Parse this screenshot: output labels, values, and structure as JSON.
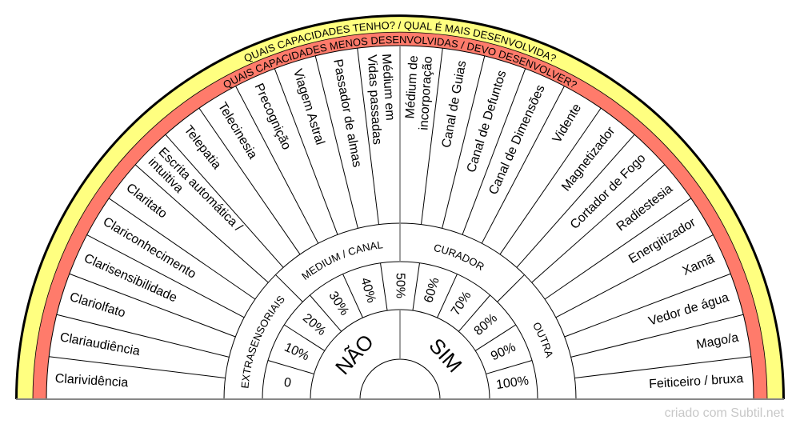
{
  "colors": {
    "outer_ring": "#ffff80",
    "inner_ring": "#ff7b6b",
    "edge": "#000000",
    "line": "#000000",
    "axis": "#888888"
  },
  "rings": {
    "outer_text": "QUAIS CAPACIDADES TENHO? / QUAL É MAIS DESENVOLVIDA?",
    "inner_text": "QUAIS CAPACIDADES MENOS DESENVOLVIDAS / DEVO DESENVOLVER?"
  },
  "capacities": [
    [
      "Clarividência"
    ],
    [
      "Clariaudiência"
    ],
    [
      "Clariolfato"
    ],
    [
      "Clarisensibilidade"
    ],
    [
      "Clariconhecimento"
    ],
    [
      "Claritato"
    ],
    [
      "Escrita automática /",
      "intuitiva"
    ],
    [
      "Telepatia"
    ],
    [
      "Telecinesia"
    ],
    [
      "Precognição"
    ],
    [
      "Viagem Astral"
    ],
    [
      "Passador de almas"
    ],
    [
      "Médium em",
      "Vidas passadas"
    ],
    [
      "Médium de",
      "incorporação"
    ],
    [
      "Canal de Guias"
    ],
    [
      "Canal de Defuntos"
    ],
    [
      "Canal de Dimensões"
    ],
    [
      "Vidente"
    ],
    [
      "Magnetizador"
    ],
    [
      "Cortador de Fogo"
    ],
    [
      "Radiestesia"
    ],
    [
      "Energitizador"
    ],
    [
      "Xamã"
    ],
    [
      "Vedor de água"
    ],
    [
      "Mago/a"
    ],
    [
      "Feiticeiro / bruxa"
    ]
  ],
  "categories": [
    "EXTRASENSORIAIS",
    "MEDIUM / CANAL",
    "CURADOR",
    "OUTRA"
  ],
  "percentages": [
    "0",
    "10%",
    "20%",
    "30%",
    "40%",
    "50%",
    "60%",
    "70%",
    "80%",
    "90%",
    "100%"
  ],
  "answers": {
    "no": "NÃO",
    "yes": "SIM"
  },
  "footer": "criado com Subtil.net"
}
